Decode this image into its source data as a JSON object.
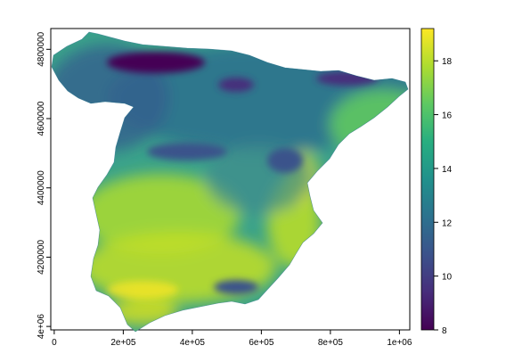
{
  "map": {
    "type": "raster",
    "x_ticks": [
      {
        "value": 0,
        "label": "0"
      },
      {
        "value": 200000,
        "label": "2e+05"
      },
      {
        "value": 400000,
        "label": "4e+05"
      },
      {
        "value": 600000,
        "label": "6e+05"
      },
      {
        "value": 800000,
        "label": "8e+05"
      },
      {
        "value": 1000000,
        "label": "1e+06"
      }
    ],
    "y_ticks": [
      {
        "value": 4000000,
        "label": "4e+06"
      },
      {
        "value": 4200000,
        "label": "4200000"
      },
      {
        "value": 4400000,
        "label": "4400000"
      },
      {
        "value": 4600000,
        "label": "4600000"
      },
      {
        "value": 4800000,
        "label": "4800000"
      }
    ],
    "x_range": [
      -10000,
      1030000
    ],
    "y_range": [
      3990000,
      4860000
    ]
  },
  "legend": {
    "min": 8,
    "max": 19.2,
    "ticks": [
      {
        "value": 8,
        "label": "8"
      },
      {
        "value": 10,
        "label": "10"
      },
      {
        "value": 12,
        "label": "12"
      },
      {
        "value": 14,
        "label": "14"
      },
      {
        "value": 16,
        "label": "16"
      },
      {
        "value": 18,
        "label": "18"
      }
    ],
    "colors": [
      "#440154",
      "#472d7b",
      "#3b528b",
      "#2c728e",
      "#21918c",
      "#28ae80",
      "#5ec962",
      "#addc30",
      "#fde725"
    ]
  }
}
